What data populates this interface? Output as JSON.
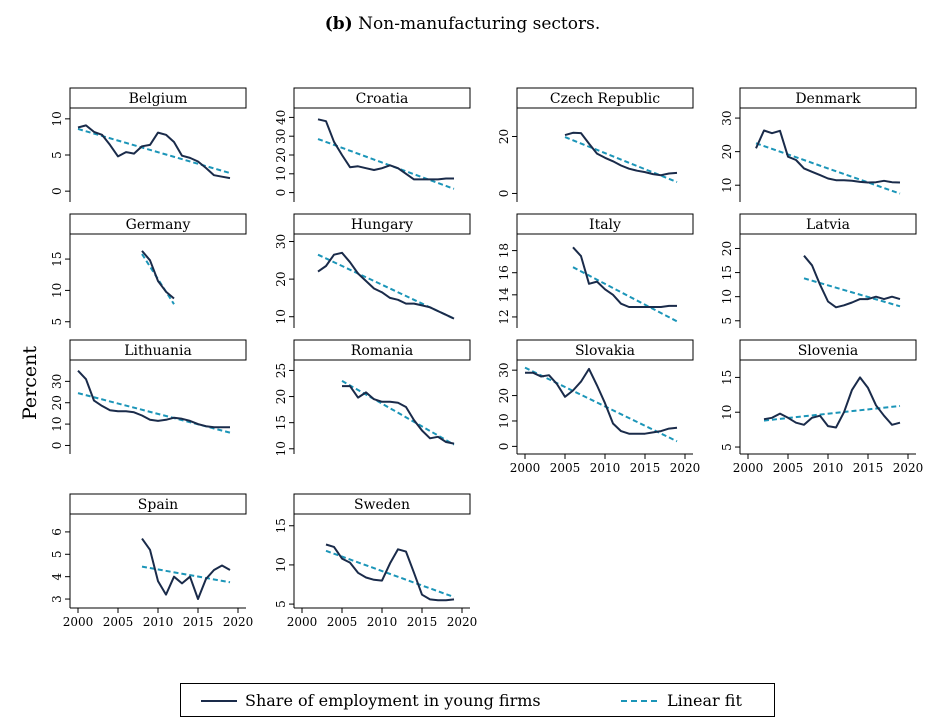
{
  "caption": {
    "prefix": "(b)",
    "text": "Non-manufacturing sectors."
  },
  "colors": {
    "series": "#1a2b4a",
    "fit": "#1b95b8"
  },
  "chart_data": {
    "type": "line",
    "ylabel": "Percent",
    "x_ticks": [
      2000,
      2005,
      2010,
      2015,
      2020
    ],
    "xlim": [
      1999,
      2021
    ],
    "legend": {
      "placement": "bottom",
      "series_label": "Share of employment in young firms",
      "fit_label": "Linear fit"
    },
    "panels": [
      {
        "title": "Belgium",
        "ylim": [
          -1.5,
          11.5
        ],
        "yticks": [
          0,
          5,
          10
        ],
        "x": [
          2000,
          2001,
          2002,
          2003,
          2004,
          2005,
          2006,
          2007,
          2008,
          2009,
          2010,
          2011,
          2012,
          2013,
          2014,
          2015,
          2016,
          2017,
          2018,
          2019
        ],
        "values": [
          8.8,
          9.1,
          8.2,
          7.8,
          6.4,
          4.8,
          5.4,
          5.2,
          6.2,
          6.4,
          8.1,
          7.8,
          6.8,
          4.9,
          4.6,
          4.1,
          3.2,
          2.2,
          2.0,
          1.8
        ],
        "fit": [
          [
            2000,
            8.6
          ],
          [
            2019,
            2.5
          ]
        ]
      },
      {
        "title": "Croatia",
        "ylim": [
          -5,
          45
        ],
        "yticks": [
          0,
          10,
          20,
          30,
          40
        ],
        "x": [
          2002,
          2003,
          2004,
          2005,
          2006,
          2007,
          2008,
          2009,
          2010,
          2011,
          2012,
          2013,
          2014,
          2015,
          2016,
          2017,
          2018,
          2019
        ],
        "values": [
          39,
          38,
          27,
          20,
          13.5,
          14,
          13,
          12,
          13,
          14.5,
          13,
          10,
          7,
          7,
          7,
          7,
          7.5,
          7.5
        ],
        "fit": [
          [
            2002,
            28.5
          ],
          [
            2019,
            2
          ]
        ]
      },
      {
        "title": "Czech Republic",
        "ylim": [
          -3,
          30
        ],
        "yticks": [
          0,
          20
        ],
        "x": [
          2005,
          2006,
          2007,
          2008,
          2009,
          2010,
          2011,
          2012,
          2013,
          2014,
          2015,
          2016,
          2017,
          2018,
          2019
        ],
        "values": [
          20.5,
          21.3,
          21.2,
          17.5,
          14,
          12.5,
          11.3,
          9.8,
          8.7,
          8,
          7.5,
          6.8,
          6.4,
          7,
          7.2
        ],
        "fit": [
          [
            2005,
            19.8
          ],
          [
            2019,
            4
          ]
        ]
      },
      {
        "title": "Denmark",
        "ylim": [
          5,
          33
        ],
        "yticks": [
          10,
          20,
          30
        ],
        "x": [
          2001,
          2002,
          2003,
          2004,
          2005,
          2006,
          2007,
          2008,
          2009,
          2010,
          2011,
          2012,
          2013,
          2014,
          2015,
          2016,
          2017,
          2018,
          2019
        ],
        "values": [
          21,
          26.3,
          25.5,
          26.2,
          18.5,
          17.5,
          15,
          14,
          13,
          12,
          11.5,
          11.5,
          11.3,
          11,
          10.8,
          10.9,
          11.3,
          10.9,
          10.8
        ],
        "fit": [
          [
            2001,
            22.5
          ],
          [
            2019,
            7.5
          ]
        ]
      },
      {
        "title": "Germany",
        "ylim": [
          4,
          19
        ],
        "yticks": [
          5,
          10,
          15
        ],
        "x": [
          2008,
          2009,
          2010,
          2011,
          2012
        ],
        "values": [
          16.3,
          14.8,
          11.5,
          9.8,
          8.7
        ],
        "fit": [
          [
            2008,
            15.8
          ],
          [
            2012,
            7.8
          ]
        ]
      },
      {
        "title": "Hungary",
        "ylim": [
          7,
          32
        ],
        "yticks": [
          10,
          20,
          30
        ],
        "x": [
          2002,
          2003,
          2004,
          2005,
          2006,
          2007,
          2008,
          2009,
          2010,
          2011,
          2012,
          2013,
          2014,
          2015,
          2016,
          2017,
          2018,
          2019
        ],
        "values": [
          22,
          23.5,
          26.5,
          27,
          24.5,
          21.5,
          19.5,
          17.5,
          16.5,
          15,
          14.5,
          13.5,
          13.5,
          13,
          12.5,
          11.5,
          10.5,
          9.5
        ],
        "fit": [
          [
            2002,
            26.5
          ],
          [
            2019,
            9.5
          ]
        ]
      },
      {
        "title": "Italy",
        "ylim": [
          11,
          19.5
        ],
        "yticks": [
          12,
          14,
          16,
          18
        ],
        "x": [
          2006,
          2007,
          2008,
          2009,
          2010,
          2011,
          2012,
          2013,
          2014,
          2015,
          2016,
          2017,
          2018,
          2019
        ],
        "values": [
          18.3,
          17.5,
          15,
          15.2,
          14.5,
          14,
          13.2,
          12.9,
          12.9,
          12.9,
          12.9,
          12.9,
          13,
          13
        ],
        "fit": [
          [
            2006,
            16.5
          ],
          [
            2019,
            11.6
          ]
        ]
      },
      {
        "title": "Latvia",
        "ylim": [
          3.5,
          23
        ],
        "yticks": [
          5,
          10,
          15,
          20
        ],
        "x": [
          2007,
          2008,
          2009,
          2010,
          2011,
          2012,
          2013,
          2014,
          2015,
          2016,
          2017,
          2018,
          2019
        ],
        "values": [
          18.5,
          16.5,
          12.5,
          9,
          7.8,
          8.2,
          8.8,
          9.5,
          9.5,
          10,
          9.5,
          10,
          9.5
        ],
        "fit": [
          [
            2007,
            13.8
          ],
          [
            2019,
            8
          ]
        ]
      },
      {
        "title": "Lithuania",
        "ylim": [
          -4,
          40
        ],
        "yticks": [
          0,
          10,
          20,
          30
        ],
        "x": [
          2000,
          2001,
          2002,
          2003,
          2004,
          2005,
          2006,
          2007,
          2008,
          2009,
          2010,
          2011,
          2012,
          2013,
          2014,
          2015,
          2016,
          2017,
          2018,
          2019
        ],
        "values": [
          35,
          31,
          21,
          18.5,
          16.5,
          16,
          16,
          15.5,
          14,
          12,
          11.5,
          12,
          13,
          12.5,
          11.5,
          10,
          9,
          8.5,
          8.5,
          8.5
        ],
        "fit": [
          [
            2000,
            24.5
          ],
          [
            2019,
            6
          ]
        ]
      },
      {
        "title": "Romania",
        "ylim": [
          9,
          27
        ],
        "yticks": [
          10,
          15,
          20,
          25
        ],
        "x": [
          2005,
          2006,
          2007,
          2008,
          2009,
          2010,
          2011,
          2012,
          2013,
          2014,
          2015,
          2016,
          2017,
          2018,
          2019
        ],
        "values": [
          22,
          22,
          19.8,
          20.8,
          19.5,
          19,
          19,
          18.8,
          18,
          15.5,
          13.5,
          12,
          12.3,
          11.3,
          11
        ],
        "fit": [
          [
            2005,
            23
          ],
          [
            2019,
            10.8
          ]
        ]
      },
      {
        "title": "Slovakia",
        "ylim": [
          -3,
          34
        ],
        "yticks": [
          0,
          10,
          20,
          30
        ],
        "x": [
          2000,
          2001,
          2002,
          2003,
          2004,
          2005,
          2006,
          2007,
          2008,
          2009,
          2010,
          2011,
          2012,
          2013,
          2014,
          2015,
          2016,
          2017,
          2018,
          2019
        ],
        "values": [
          29,
          29,
          27.5,
          28,
          24.5,
          19.5,
          22,
          25.5,
          30.5,
          24,
          17,
          9,
          6,
          5,
          5,
          5,
          5.5,
          6,
          7,
          7.3
        ],
        "fit": [
          [
            2000,
            31
          ],
          [
            2019,
            2
          ]
        ]
      },
      {
        "title": "Slovenia",
        "ylim": [
          4,
          17.5
        ],
        "yticks": [
          5,
          10,
          15
        ],
        "x": [
          2002,
          2003,
          2004,
          2005,
          2006,
          2007,
          2008,
          2009,
          2010,
          2011,
          2012,
          2013,
          2014,
          2015,
          2016,
          2017,
          2018,
          2019
        ],
        "values": [
          9,
          9.2,
          9.8,
          9.2,
          8.5,
          8.2,
          9.2,
          9.5,
          8,
          7.8,
          10,
          13.2,
          15,
          13.5,
          11,
          9.5,
          8.2,
          8.5
        ],
        "fit": [
          [
            2002,
            8.8
          ],
          [
            2019,
            10.9
          ]
        ]
      },
      {
        "title": "Spain",
        "ylim": [
          2.6,
          6.8
        ],
        "yticks": [
          3,
          4,
          5,
          6
        ],
        "x": [
          2008,
          2009,
          2010,
          2011,
          2012,
          2013,
          2014,
          2015,
          2016,
          2017,
          2018,
          2019
        ],
        "values": [
          5.7,
          5.2,
          3.8,
          3.2,
          4,
          3.7,
          4,
          3,
          3.9,
          4.3,
          4.5,
          4.3
        ],
        "fit": [
          [
            2008,
            4.45
          ],
          [
            2019,
            3.75
          ]
        ]
      },
      {
        "title": "Sweden",
        "ylim": [
          4.5,
          16.5
        ],
        "yticks": [
          5,
          10,
          15
        ],
        "x": [
          2003,
          2004,
          2005,
          2006,
          2007,
          2008,
          2009,
          2010,
          2011,
          2012,
          2013,
          2014,
          2015,
          2016,
          2017,
          2018,
          2019
        ],
        "values": [
          12.6,
          12.3,
          10.8,
          10.3,
          9,
          8.4,
          8.1,
          8,
          10.2,
          12,
          11.7,
          9,
          6.2,
          5.6,
          5.5,
          5.5,
          5.6
        ],
        "fit": [
          [
            2003,
            11.8
          ],
          [
            2019,
            5.9
          ]
        ]
      }
    ]
  }
}
